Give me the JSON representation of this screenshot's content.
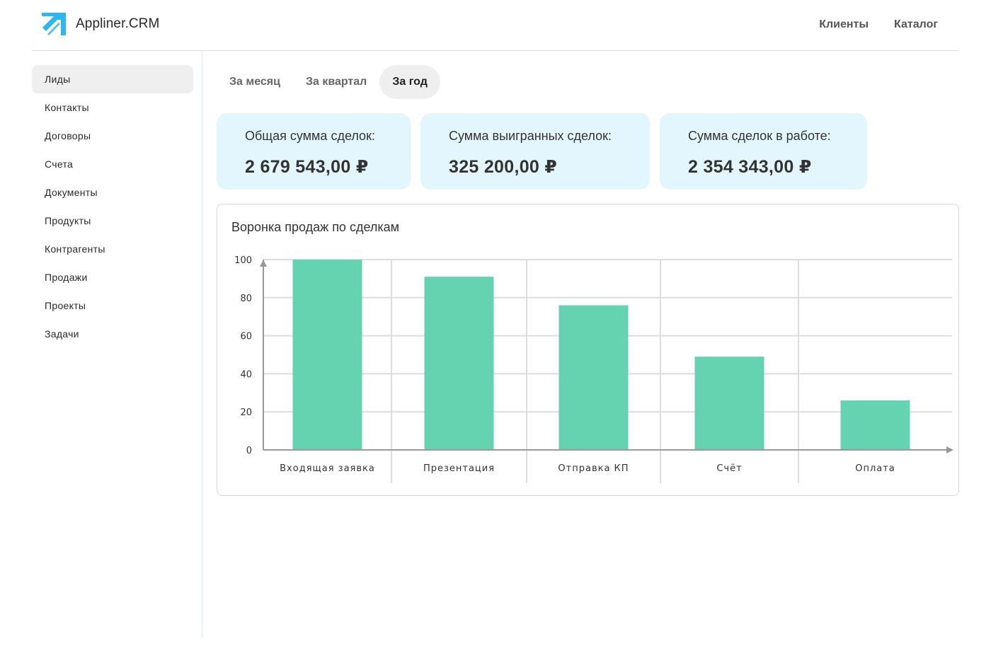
{
  "header": {
    "app_name": "Appliner.CRM",
    "logo_icon": "arrow-logo-icon",
    "nav": [
      "Клиенты",
      "Каталог"
    ]
  },
  "sidebar": {
    "items": [
      {
        "label": "Лиды",
        "active": true
      },
      {
        "label": "Контакты",
        "active": false
      },
      {
        "label": "Договоры",
        "active": false
      },
      {
        "label": "Счета",
        "active": false
      },
      {
        "label": "Документы",
        "active": false
      },
      {
        "label": "Продукты",
        "active": false
      },
      {
        "label": "Контрагенты",
        "active": false
      },
      {
        "label": "Продажи",
        "active": false
      },
      {
        "label": "Проекты",
        "active": false
      },
      {
        "label": "Задачи",
        "active": false
      }
    ]
  },
  "tabs": [
    {
      "label": "За месяц",
      "active": false
    },
    {
      "label": "За квартал",
      "active": false
    },
    {
      "label": "За год",
      "active": true
    }
  ],
  "stats": [
    {
      "label": "Общая сумма сделок:",
      "value": "2 679 543,00 ₽"
    },
    {
      "label": "Сумма выигранных сделок:",
      "value": "325 200,00 ₽"
    },
    {
      "label": "Сумма сделок в работе:",
      "value": "2 354 343,00 ₽"
    }
  ],
  "colors": {
    "accent_blue": "#2fb6ef",
    "card_bg": "#e3f6fd",
    "bar": "#66d3b0"
  },
  "chart_data": {
    "type": "bar",
    "title": "Воронка продаж по сделкам",
    "categories": [
      "Входящая заявка",
      "Презентация",
      "Отправка КП",
      "Счёт",
      "Оплата"
    ],
    "values": [
      100,
      91,
      76,
      49,
      26
    ],
    "yticks": [
      0,
      20,
      40,
      60,
      80,
      100
    ],
    "ylim": [
      0,
      100
    ],
    "xlabel": "",
    "ylabel": "",
    "grid": true,
    "legend": "none"
  }
}
